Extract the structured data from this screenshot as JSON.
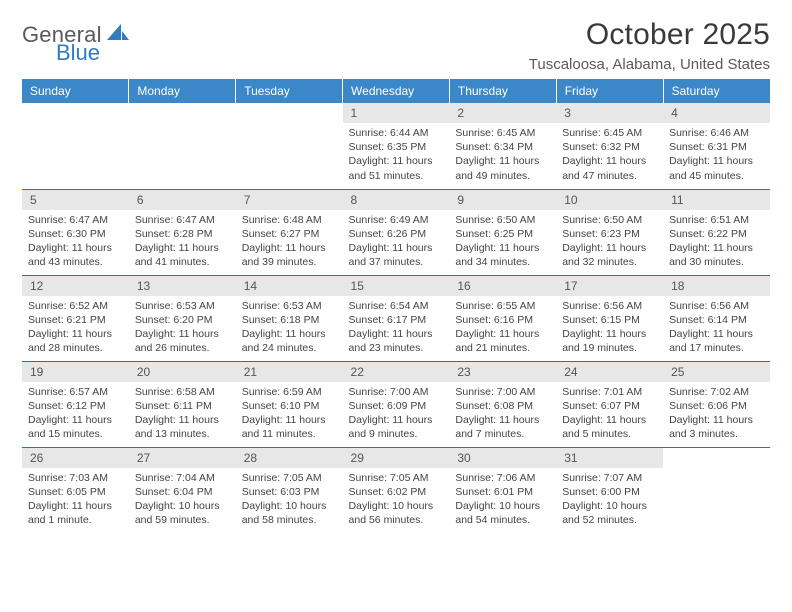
{
  "logo": {
    "part1": "General",
    "part2": "Blue"
  },
  "colors": {
    "header_bg": "#3b87c8",
    "daynum_bg": "#e7e7e7",
    "row_border": "#2f6ea6",
    "logo_blue": "#2f7dc0",
    "text_dark": "#3a3a3a"
  },
  "month_title": "October 2025",
  "location": "Tuscaloosa, Alabama, United States",
  "day_headers": [
    "Sunday",
    "Monday",
    "Tuesday",
    "Wednesday",
    "Thursday",
    "Friday",
    "Saturday"
  ],
  "weeks": [
    [
      null,
      null,
      null,
      {
        "n": "1",
        "sunrise": "6:44 AM",
        "sunset": "6:35 PM",
        "daylight": "11 hours and 51 minutes."
      },
      {
        "n": "2",
        "sunrise": "6:45 AM",
        "sunset": "6:34 PM",
        "daylight": "11 hours and 49 minutes."
      },
      {
        "n": "3",
        "sunrise": "6:45 AM",
        "sunset": "6:32 PM",
        "daylight": "11 hours and 47 minutes."
      },
      {
        "n": "4",
        "sunrise": "6:46 AM",
        "sunset": "6:31 PM",
        "daylight": "11 hours and 45 minutes."
      }
    ],
    [
      {
        "n": "5",
        "sunrise": "6:47 AM",
        "sunset": "6:30 PM",
        "daylight": "11 hours and 43 minutes."
      },
      {
        "n": "6",
        "sunrise": "6:47 AM",
        "sunset": "6:28 PM",
        "daylight": "11 hours and 41 minutes."
      },
      {
        "n": "7",
        "sunrise": "6:48 AM",
        "sunset": "6:27 PM",
        "daylight": "11 hours and 39 minutes."
      },
      {
        "n": "8",
        "sunrise": "6:49 AM",
        "sunset": "6:26 PM",
        "daylight": "11 hours and 37 minutes."
      },
      {
        "n": "9",
        "sunrise": "6:50 AM",
        "sunset": "6:25 PM",
        "daylight": "11 hours and 34 minutes."
      },
      {
        "n": "10",
        "sunrise": "6:50 AM",
        "sunset": "6:23 PM",
        "daylight": "11 hours and 32 minutes."
      },
      {
        "n": "11",
        "sunrise": "6:51 AM",
        "sunset": "6:22 PM",
        "daylight": "11 hours and 30 minutes."
      }
    ],
    [
      {
        "n": "12",
        "sunrise": "6:52 AM",
        "sunset": "6:21 PM",
        "daylight": "11 hours and 28 minutes."
      },
      {
        "n": "13",
        "sunrise": "6:53 AM",
        "sunset": "6:20 PM",
        "daylight": "11 hours and 26 minutes."
      },
      {
        "n": "14",
        "sunrise": "6:53 AM",
        "sunset": "6:18 PM",
        "daylight": "11 hours and 24 minutes."
      },
      {
        "n": "15",
        "sunrise": "6:54 AM",
        "sunset": "6:17 PM",
        "daylight": "11 hours and 23 minutes."
      },
      {
        "n": "16",
        "sunrise": "6:55 AM",
        "sunset": "6:16 PM",
        "daylight": "11 hours and 21 minutes."
      },
      {
        "n": "17",
        "sunrise": "6:56 AM",
        "sunset": "6:15 PM",
        "daylight": "11 hours and 19 minutes."
      },
      {
        "n": "18",
        "sunrise": "6:56 AM",
        "sunset": "6:14 PM",
        "daylight": "11 hours and 17 minutes."
      }
    ],
    [
      {
        "n": "19",
        "sunrise": "6:57 AM",
        "sunset": "6:12 PM",
        "daylight": "11 hours and 15 minutes."
      },
      {
        "n": "20",
        "sunrise": "6:58 AM",
        "sunset": "6:11 PM",
        "daylight": "11 hours and 13 minutes."
      },
      {
        "n": "21",
        "sunrise": "6:59 AM",
        "sunset": "6:10 PM",
        "daylight": "11 hours and 11 minutes."
      },
      {
        "n": "22",
        "sunrise": "7:00 AM",
        "sunset": "6:09 PM",
        "daylight": "11 hours and 9 minutes."
      },
      {
        "n": "23",
        "sunrise": "7:00 AM",
        "sunset": "6:08 PM",
        "daylight": "11 hours and 7 minutes."
      },
      {
        "n": "24",
        "sunrise": "7:01 AM",
        "sunset": "6:07 PM",
        "daylight": "11 hours and 5 minutes."
      },
      {
        "n": "25",
        "sunrise": "7:02 AM",
        "sunset": "6:06 PM",
        "daylight": "11 hours and 3 minutes."
      }
    ],
    [
      {
        "n": "26",
        "sunrise": "7:03 AM",
        "sunset": "6:05 PM",
        "daylight": "11 hours and 1 minute."
      },
      {
        "n": "27",
        "sunrise": "7:04 AM",
        "sunset": "6:04 PM",
        "daylight": "10 hours and 59 minutes."
      },
      {
        "n": "28",
        "sunrise": "7:05 AM",
        "sunset": "6:03 PM",
        "daylight": "10 hours and 58 minutes."
      },
      {
        "n": "29",
        "sunrise": "7:05 AM",
        "sunset": "6:02 PM",
        "daylight": "10 hours and 56 minutes."
      },
      {
        "n": "30",
        "sunrise": "7:06 AM",
        "sunset": "6:01 PM",
        "daylight": "10 hours and 54 minutes."
      },
      {
        "n": "31",
        "sunrise": "7:07 AM",
        "sunset": "6:00 PM",
        "daylight": "10 hours and 52 minutes."
      },
      null
    ]
  ],
  "labels": {
    "sunrise": "Sunrise:",
    "sunset": "Sunset:",
    "daylight": "Daylight:"
  }
}
